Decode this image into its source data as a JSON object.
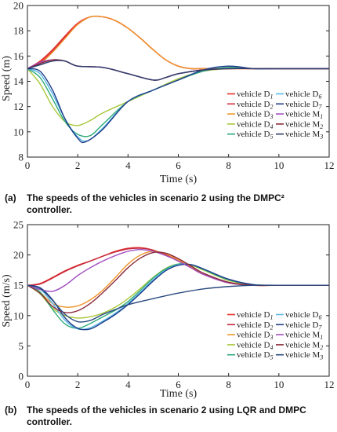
{
  "captions": [
    {
      "label": "(a)",
      "text": "The speeds of the vehicles in scenario 2 using the DMPC² controller."
    },
    {
      "label": "(b)",
      "text": "The speeds of the vehicles in scenario 2 using LQR and DMPC controller."
    }
  ],
  "chart_data": [
    {
      "type": "line",
      "xlabel": "Time (s)",
      "ylabel": "Speed (m)",
      "xlim": [
        0,
        12
      ],
      "ylim": [
        8,
        20
      ],
      "xticks": [
        "0",
        "2",
        "4",
        "6",
        "8",
        "10",
        "12"
      ],
      "yticks": [
        "8",
        "10",
        "12",
        "14",
        "16",
        "18",
        "20"
      ],
      "legend_position": "bottom-right",
      "series": [
        {
          "name": "vehicle D1",
          "base": "vehicle D",
          "sub": "1",
          "color": "#e8312a",
          "x": [
            0,
            0.5,
            1,
            1.5,
            2,
            2.5,
            3,
            3.5,
            4,
            4.5,
            5,
            5.5,
            6,
            6.5,
            7,
            8,
            9,
            10,
            12
          ],
          "y": [
            15,
            15.6,
            16.5,
            17.6,
            18.6,
            19.1,
            19.1,
            18.8,
            18.2,
            17.4,
            16.5,
            15.7,
            15.2,
            15.0,
            15.0,
            15.0,
            15.0,
            15.0,
            15.0
          ]
        },
        {
          "name": "vehicle D2",
          "base": "vehicle D",
          "sub": "2",
          "color": "#d62d3e",
          "x": [
            0,
            0.5,
            1,
            1.5,
            2,
            2.5,
            3,
            3.5,
            4,
            4.5,
            5,
            5.5,
            6,
            6.5,
            7,
            8,
            9,
            10,
            12
          ],
          "y": [
            15,
            15.5,
            16.4,
            17.5,
            18.5,
            19.1,
            19.1,
            18.8,
            18.2,
            17.4,
            16.5,
            15.7,
            15.2,
            15.0,
            15.0,
            15.0,
            15.0,
            15.0,
            15.0
          ]
        },
        {
          "name": "vehicle D3",
          "base": "vehicle D",
          "sub": "3",
          "color": "#f0962a",
          "x": [
            0,
            0.5,
            1,
            1.5,
            2,
            2.5,
            3,
            3.5,
            4,
            4.5,
            5,
            5.5,
            6,
            6.5,
            7,
            8,
            9,
            10,
            12
          ],
          "y": [
            15,
            15.4,
            16.3,
            17.4,
            18.5,
            19.1,
            19.1,
            18.8,
            18.2,
            17.4,
            16.5,
            15.7,
            15.2,
            15.0,
            15.0,
            15.0,
            15.0,
            15.0,
            15.0
          ]
        },
        {
          "name": "vehicle D4",
          "base": "vehicle D",
          "sub": "4",
          "color": "#a8c83a",
          "x": [
            0,
            0.5,
            1,
            1.5,
            2,
            2.5,
            3,
            4,
            5,
            6,
            7,
            8,
            9,
            10,
            12
          ],
          "y": [
            15,
            13.8,
            12.0,
            10.8,
            10.5,
            10.9,
            11.5,
            12.4,
            13.3,
            14.2,
            14.8,
            15.0,
            15.0,
            15.0,
            15.0
          ]
        },
        {
          "name": "vehicle D5",
          "base": "vehicle D",
          "sub": "5",
          "color": "#2eaa7a",
          "x": [
            0,
            0.5,
            1,
            1.5,
            2,
            2.5,
            3,
            4,
            5,
            6,
            7,
            8,
            9,
            10,
            12
          ],
          "y": [
            15,
            14.3,
            12.6,
            10.8,
            9.8,
            9.7,
            10.6,
            12.4,
            13.3,
            14.1,
            14.8,
            15.1,
            15.0,
            15.0,
            15.0
          ]
        },
        {
          "name": "vehicle D6",
          "base": "vehicle D",
          "sub": "6",
          "color": "#5bb8e8",
          "x": [
            0,
            0.5,
            1,
            1.5,
            2,
            2.4,
            3,
            4,
            5,
            6,
            7,
            8,
            9,
            10,
            12
          ],
          "y": [
            15,
            14.6,
            13.0,
            11.0,
            9.6,
            9.3,
            10.3,
            12.4,
            13.3,
            14.1,
            14.9,
            15.2,
            15.0,
            15.0,
            15.0
          ]
        },
        {
          "name": "vehicle D7",
          "base": "vehicle D",
          "sub": "7",
          "color": "#1f3c88",
          "x": [
            0,
            0.5,
            1,
            1.5,
            2,
            2.3,
            3,
            4,
            5,
            6,
            7,
            8,
            9,
            10,
            12
          ],
          "y": [
            15,
            14.8,
            13.3,
            11.0,
            9.5,
            9.2,
            10.2,
            12.4,
            13.3,
            14.1,
            14.9,
            15.2,
            15.0,
            15.0,
            15.0
          ]
        },
        {
          "name": "vehicle M1",
          "base": "vehicle M",
          "sub": "1",
          "color": "#a04cc0",
          "x": [
            0,
            0.5,
            1,
            1.5,
            2,
            3,
            4,
            5,
            5.5,
            6,
            7,
            8,
            9,
            10,
            12
          ],
          "y": [
            15,
            15.5,
            15.7,
            15.6,
            15.2,
            15.1,
            14.6,
            14.1,
            14.3,
            14.6,
            14.9,
            15.0,
            15.0,
            15.0,
            15.0
          ]
        },
        {
          "name": "vehicle M2",
          "base": "vehicle M",
          "sub": "2",
          "color": "#8a2a3a",
          "x": [
            0,
            0.5,
            1,
            1.5,
            2,
            3,
            4,
            5,
            5.5,
            6,
            7,
            8,
            9,
            10,
            12
          ],
          "y": [
            15,
            15.4,
            15.7,
            15.6,
            15.2,
            15.1,
            14.6,
            14.1,
            14.3,
            14.6,
            14.9,
            15.0,
            15.0,
            15.0,
            15.0
          ]
        },
        {
          "name": "vehicle M3",
          "base": "vehicle M",
          "sub": "3",
          "color": "#2a3d6e",
          "x": [
            0,
            0.5,
            1,
            1.5,
            2,
            3,
            4,
            5,
            5.5,
            6,
            7,
            8,
            9,
            10,
            12
          ],
          "y": [
            15,
            15.3,
            15.6,
            15.6,
            15.2,
            15.1,
            14.6,
            14.1,
            14.3,
            14.6,
            14.9,
            15.0,
            15.0,
            15.0,
            15.0
          ]
        }
      ]
    },
    {
      "type": "line",
      "xlabel": "Time (s)",
      "ylabel": "Speed (m/s)",
      "xlim": [
        0,
        12
      ],
      "ylim": [
        0,
        25
      ],
      "xticks": [
        "0",
        "2",
        "4",
        "6",
        "8",
        "10",
        "12"
      ],
      "yticks": [
        "0",
        "5",
        "10",
        "15",
        "20",
        "25"
      ],
      "legend_position": "bottom-right",
      "series": [
        {
          "name": "vehicle D1",
          "base": "vehicle D",
          "sub": "1",
          "color": "#e8312a",
          "x": [
            0,
            0.5,
            1,
            1.5,
            2,
            2.5,
            3,
            3.5,
            4,
            4.5,
            5,
            5.5,
            6,
            6.5,
            7,
            8,
            9,
            10,
            12
          ],
          "y": [
            15,
            15.3,
            16.3,
            17.4,
            18.3,
            19.0,
            19.8,
            20.6,
            21.1,
            21.2,
            20.8,
            20.0,
            19.0,
            17.9,
            16.8,
            15.4,
            15.0,
            15.0,
            15.0
          ]
        },
        {
          "name": "vehicle D2",
          "base": "vehicle D",
          "sub": "2",
          "color": "#c8283c",
          "x": [
            0,
            0.5,
            1,
            1.5,
            2,
            2.5,
            3,
            3.5,
            4,
            4.5,
            5,
            5.5,
            6,
            6.5,
            7,
            8,
            9,
            10,
            12
          ],
          "y": [
            15,
            15.2,
            16.2,
            17.3,
            18.2,
            19.0,
            19.8,
            20.5,
            21.0,
            21.1,
            20.8,
            20.0,
            19.0,
            17.9,
            16.8,
            15.4,
            15.0,
            15.0,
            15.0
          ]
        },
        {
          "name": "vehicle D3",
          "base": "vehicle D",
          "sub": "3",
          "color": "#f0962a",
          "x": [
            0,
            0.5,
            1,
            1.5,
            2,
            2.5,
            3,
            3.5,
            4,
            4.5,
            5,
            5.5,
            6,
            6.5,
            7,
            8,
            9,
            10,
            12
          ],
          "y": [
            15,
            13.8,
            12.0,
            11.4,
            11.6,
            12.6,
            14.2,
            16.3,
            18.5,
            20.0,
            20.6,
            20.2,
            19.2,
            18.0,
            16.9,
            15.5,
            15.0,
            15.0,
            15.0
          ]
        },
        {
          "name": "vehicle D4",
          "base": "vehicle D",
          "sub": "4",
          "color": "#a8c83a",
          "x": [
            0,
            0.5,
            1,
            1.5,
            2,
            2.5,
            3,
            3.5,
            4,
            4.5,
            5,
            5.5,
            6,
            6.5,
            7,
            8,
            9,
            10,
            12
          ],
          "y": [
            15,
            13.6,
            11.2,
            10.0,
            9.6,
            9.8,
            10.4,
            11.4,
            12.8,
            14.5,
            16.3,
            17.8,
            18.5,
            18.3,
            17.5,
            15.8,
            15.1,
            15.0,
            15.0
          ]
        },
        {
          "name": "vehicle D5",
          "base": "vehicle D",
          "sub": "5",
          "color": "#2eaa7a",
          "x": [
            0,
            0.5,
            1,
            1.5,
            2,
            2.5,
            3,
            3.5,
            4,
            4.5,
            5,
            5.5,
            6,
            6.5,
            7,
            8,
            9,
            10,
            12
          ],
          "y": [
            15,
            13.9,
            11.0,
            8.6,
            7.9,
            8.7,
            9.8,
            10.9,
            12.3,
            14.2,
            16.2,
            17.7,
            18.5,
            18.4,
            17.6,
            15.9,
            15.1,
            15.0,
            15.0
          ]
        },
        {
          "name": "vehicle D6",
          "base": "vehicle D",
          "sub": "6",
          "color": "#5bb8e8",
          "x": [
            0,
            0.5,
            1,
            1.5,
            2,
            2.5,
            3,
            3.5,
            4,
            4.5,
            5,
            5.5,
            6,
            6.5,
            7,
            8,
            9,
            10,
            12
          ],
          "y": [
            15,
            14.4,
            12.0,
            9.2,
            7.8,
            8.0,
            9.1,
            10.4,
            12.0,
            13.9,
            15.9,
            17.5,
            18.4,
            18.4,
            17.7,
            16.0,
            15.1,
            15.0,
            15.0
          ]
        },
        {
          "name": "vehicle D7",
          "base": "vehicle D",
          "sub": "7",
          "color": "#1f3c88",
          "x": [
            0,
            0.5,
            1,
            1.5,
            2,
            2.5,
            3,
            3.5,
            4,
            4.5,
            5,
            5.5,
            6,
            6.5,
            7,
            8,
            9,
            10,
            12
          ],
          "y": [
            15,
            14.6,
            12.6,
            9.6,
            7.9,
            7.8,
            8.9,
            10.2,
            11.8,
            13.7,
            15.7,
            17.4,
            18.3,
            18.4,
            17.7,
            16.0,
            15.1,
            15.0,
            15.0
          ]
        },
        {
          "name": "vehicle M1",
          "base": "vehicle M",
          "sub": "1",
          "color": "#a04cc0",
          "x": [
            0,
            0.5,
            1,
            1.5,
            2,
            2.5,
            3,
            3.5,
            4,
            4.5,
            5,
            5.5,
            6,
            6.5,
            7,
            8,
            9,
            10,
            12
          ],
          "y": [
            15,
            14.3,
            14.0,
            15.0,
            16.6,
            17.9,
            19.0,
            19.9,
            20.6,
            20.9,
            20.6,
            19.9,
            19.0,
            17.9,
            16.8,
            15.4,
            15.0,
            15.0,
            15.0
          ]
        },
        {
          "name": "vehicle M2",
          "base": "vehicle M",
          "sub": "2",
          "color": "#8a2a3a",
          "x": [
            0,
            0.5,
            1,
            1.5,
            2,
            2.5,
            3,
            3.5,
            4,
            4.5,
            5,
            5.5,
            6,
            6.5,
            7,
            8,
            9,
            10,
            12
          ],
          "y": [
            15,
            13.7,
            11.5,
            10.5,
            10.8,
            12.0,
            13.8,
            15.8,
            17.9,
            19.5,
            20.4,
            20.3,
            19.4,
            18.2,
            17.0,
            15.5,
            15.0,
            15.0,
            15.0
          ]
        },
        {
          "name": "vehicle M3",
          "base": "vehicle M",
          "sub": "3",
          "color": "#2a4a80",
          "x": [
            0,
            0.5,
            1,
            1.5,
            2,
            2.5,
            3,
            3.5,
            4,
            5,
            6,
            7,
            8,
            9,
            10,
            12
          ],
          "y": [
            15,
            14.5,
            12.5,
            10.2,
            9.0,
            9.2,
            10.2,
            11.0,
            11.8,
            12.8,
            13.7,
            14.4,
            14.8,
            15.0,
            15.0,
            15.0
          ]
        }
      ]
    }
  ]
}
